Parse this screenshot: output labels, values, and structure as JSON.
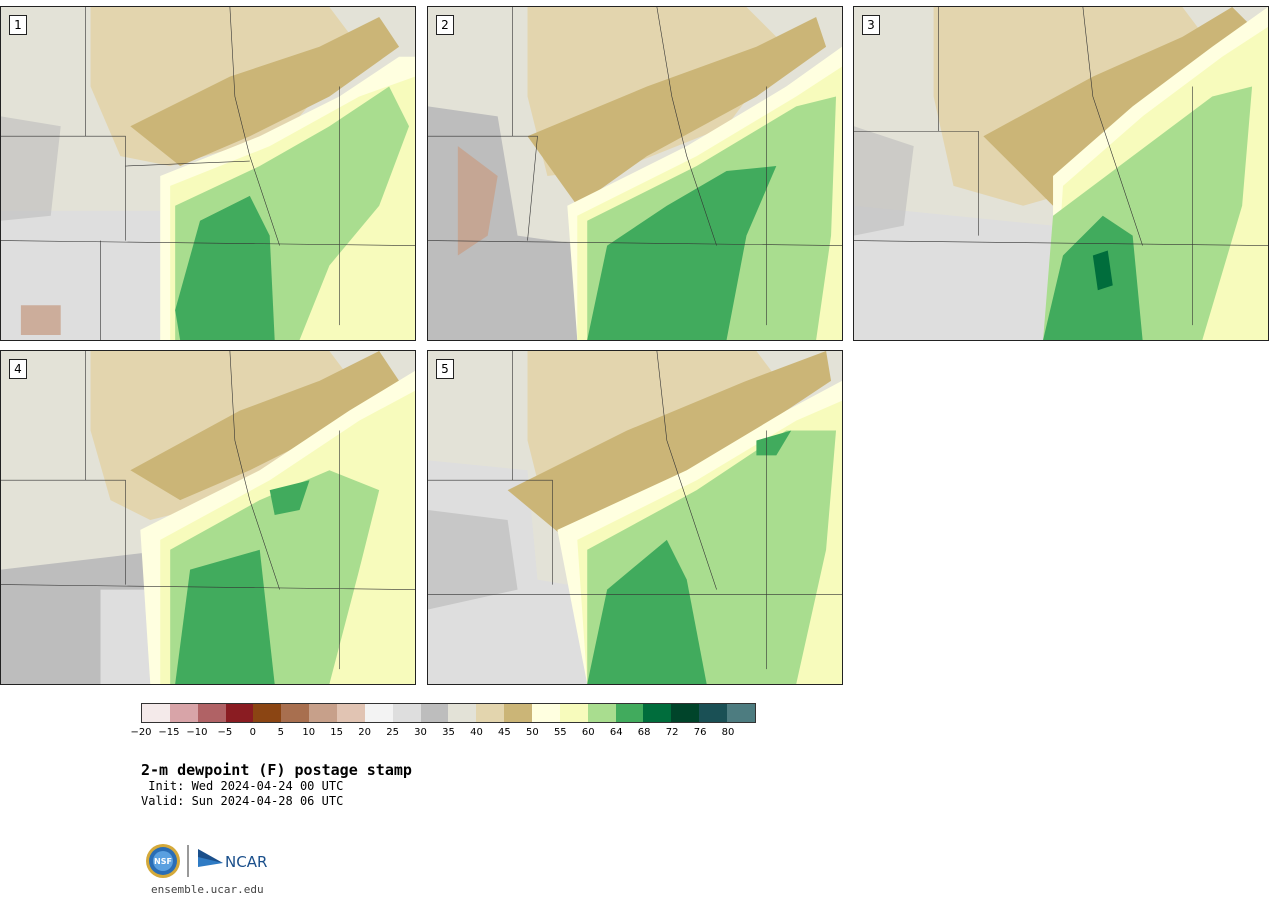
{
  "panels": [
    {
      "label": "1"
    },
    {
      "label": "2"
    },
    {
      "label": "3"
    },
    {
      "label": "4"
    },
    {
      "label": "5"
    }
  ],
  "colorbar": {
    "colors": [
      "#f4eaea",
      "#d8a4a8",
      "#b06265",
      "#8a1c22",
      "#8b4513",
      "#a86f4f",
      "#c7a08a",
      "#e1c4b3",
      "#f3f3f3",
      "#dedede",
      "#bdbdbd",
      "#e3e2d7",
      "#e3d5ae",
      "#cbb577",
      "#ffffe0",
      "#f7fbbc",
      "#a9dd8f",
      "#41ab5d",
      "#006d3c",
      "#00442a",
      "#1a5055",
      "#4d7c80"
    ],
    "ticks": [
      "−20",
      "−15",
      "−10",
      "−5",
      "0",
      "5",
      "10",
      "15",
      "20",
      "25",
      "30",
      "35",
      "40",
      "45",
      "50",
      "55",
      "60",
      "64",
      "68",
      "72",
      "76",
      "80"
    ]
  },
  "title": "2-m dewpoint (F) postage stamp",
  "init": " Init: Wed 2024-04-24 00 UTC",
  "valid": "Valid: Sun 2024-04-28 06 UTC",
  "logos": {
    "nsf": "NSF",
    "ncar": "NCAR"
  },
  "website": "ensemble.ucar.edu"
}
